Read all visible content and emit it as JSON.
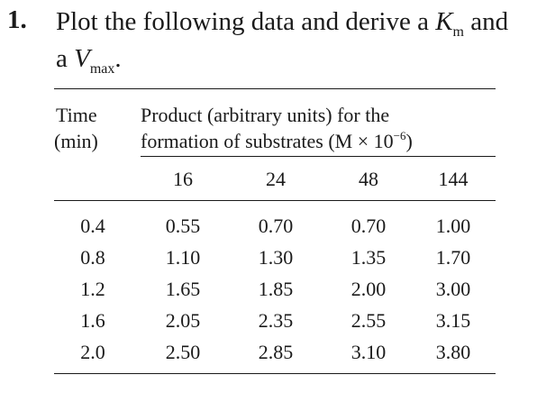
{
  "problem": {
    "number": "1.",
    "text_part1": "Plot the following data and derive a",
    "k_symbol": "K",
    "k_subscript": "m",
    "text_part2": "and",
    "text_part3": "a",
    "v_symbol": "V",
    "v_subscript": "max",
    "end_punct": "."
  },
  "table": {
    "time_header_line1": "Time",
    "time_header_line2": "(min)",
    "product_header_line1": "Product (arbitrary units) for the",
    "product_header_line2_pre": "formation of substrates (M × 10",
    "product_header_exp": "−6",
    "product_header_line2_post": ")",
    "concentrations": [
      "16",
      "24",
      "48",
      "144"
    ],
    "rows": [
      {
        "time": "0.4",
        "values": [
          "0.55",
          "0.70",
          "0.70",
          "1.00"
        ]
      },
      {
        "time": "0.8",
        "values": [
          "1.10",
          "1.30",
          "1.35",
          "1.70"
        ]
      },
      {
        "time": "1.2",
        "values": [
          "1.65",
          "1.85",
          "2.00",
          "3.00"
        ]
      },
      {
        "time": "1.6",
        "values": [
          "2.05",
          "2.35",
          "2.55",
          "3.15"
        ]
      },
      {
        "time": "2.0",
        "values": [
          "2.50",
          "2.85",
          "3.10",
          "3.80"
        ]
      }
    ]
  }
}
